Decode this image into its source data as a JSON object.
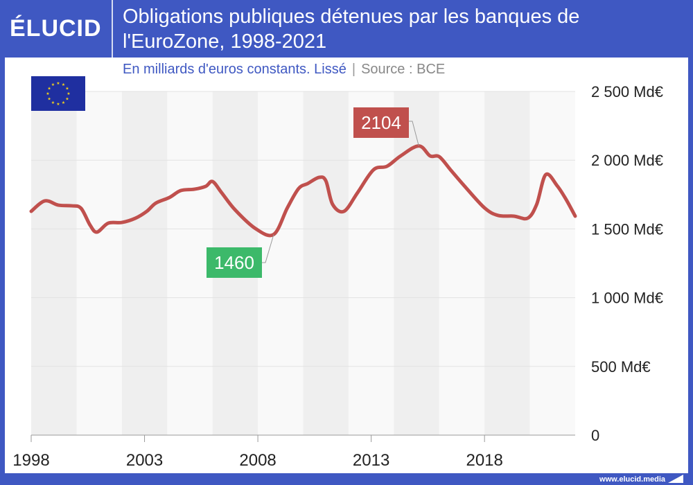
{
  "header": {
    "logo": "ÉLUCID",
    "title": "Obligations publiques détenues par les banques de l'EuroZone, 1998-2021"
  },
  "subtitle": {
    "text": "En milliards d'euros constants. Lissé",
    "separator": "|",
    "source": "Source : BCE"
  },
  "footer": {
    "url": "www.elucid.media"
  },
  "colors": {
    "brand": "#3f58c2",
    "line": "#c0504d",
    "min_label": "#3cb96a",
    "max_label": "#c0504d"
  },
  "chart_data": {
    "type": "line",
    "title": "Obligations publiques détenues par les banques de l'EuroZone, 1998-2021",
    "xlabel": "",
    "ylabel": "",
    "xlim": [
      1998,
      2022
    ],
    "ylim": [
      0,
      2500
    ],
    "x_ticks": [
      {
        "v": 1998,
        "label": "1998"
      },
      {
        "v": 2003,
        "label": "2003"
      },
      {
        "v": 2008,
        "label": "2008"
      },
      {
        "v": 2013,
        "label": "2013"
      },
      {
        "v": 2018,
        "label": "2018"
      }
    ],
    "y_ticks": [
      {
        "v": 0,
        "label": "0"
      },
      {
        "v": 500,
        "label": "500 Md€"
      },
      {
        "v": 1000,
        "label": "1 000 Md€"
      },
      {
        "v": 1500,
        "label": "1 500 Md€"
      },
      {
        "v": 2000,
        "label": "2 000 Md€"
      },
      {
        "v": 2500,
        "label": "2 500 Md€"
      }
    ],
    "grid": true,
    "series": [
      {
        "name": "Obligations publiques",
        "points": [
          [
            1998.0,
            1628
          ],
          [
            1998.6,
            1704
          ],
          [
            1999.2,
            1673
          ],
          [
            1999.8,
            1668
          ],
          [
            2000.2,
            1650
          ],
          [
            2000.6,
            1527
          ],
          [
            2000.9,
            1477
          ],
          [
            2001.4,
            1542
          ],
          [
            2002.0,
            1547
          ],
          [
            2002.6,
            1578
          ],
          [
            2003.1,
            1628
          ],
          [
            2003.5,
            1688
          ],
          [
            2004.1,
            1729
          ],
          [
            2004.6,
            1779
          ],
          [
            2005.2,
            1789
          ],
          [
            2005.7,
            1810
          ],
          [
            2006.0,
            1845
          ],
          [
            2006.4,
            1764
          ],
          [
            2007.0,
            1638
          ],
          [
            2007.9,
            1502
          ],
          [
            2008.7,
            1460
          ],
          [
            2009.3,
            1653
          ],
          [
            2009.8,
            1794
          ],
          [
            2010.2,
            1830
          ],
          [
            2010.7,
            1875
          ],
          [
            2011.0,
            1850
          ],
          [
            2011.3,
            1678
          ],
          [
            2011.8,
            1628
          ],
          [
            2012.4,
            1764
          ],
          [
            2013.1,
            1930
          ],
          [
            2013.7,
            1956
          ],
          [
            2014.3,
            2031
          ],
          [
            2015.1,
            2104
          ],
          [
            2015.6,
            2031
          ],
          [
            2016.0,
            2026
          ],
          [
            2016.5,
            1930
          ],
          [
            2017.1,
            1815
          ],
          [
            2018.0,
            1653
          ],
          [
            2018.6,
            1598
          ],
          [
            2019.3,
            1593
          ],
          [
            2019.9,
            1578
          ],
          [
            2020.3,
            1678
          ],
          [
            2020.7,
            1895
          ],
          [
            2021.2,
            1815
          ],
          [
            2021.6,
            1714
          ],
          [
            2022.0,
            1593
          ]
        ]
      }
    ],
    "annotations": [
      {
        "label": "2104",
        "x": 2015.1,
        "y": 2104,
        "kind": "max"
      },
      {
        "label": "1460",
        "x": 2008.7,
        "y": 1460,
        "kind": "min"
      }
    ]
  }
}
